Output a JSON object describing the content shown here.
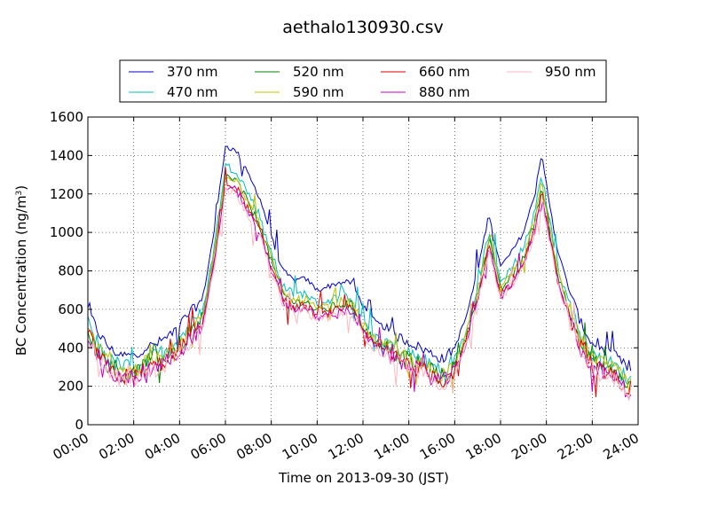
{
  "chart_data": {
    "type": "line",
    "title": "aethalo130930.csv",
    "xlabel": "Time on 2013-09-30 (JST)",
    "ylabel": "BC Concentration (ng/m",
    "ylabel_sup": "3",
    "ylabel_suffix": ")",
    "xlim": [
      "2013-09-30 00:00",
      "2013-10-01 00:00"
    ],
    "ylim": [
      0,
      1600
    ],
    "x_ticks": [
      "00:00",
      "02:00",
      "04:00",
      "06:00",
      "08:00",
      "10:00",
      "12:00",
      "14:00",
      "16:00",
      "18:00",
      "20:00",
      "22:00",
      "24:00"
    ],
    "y_ticks": [
      "0",
      "200",
      "400",
      "600",
      "800",
      "1000",
      "1200",
      "1400",
      "1600"
    ],
    "grid": true,
    "legend_position": "top",
    "series": [
      {
        "name": "370 nm",
        "color": "#0000cc",
        "offset": 0,
        "scale": 1.0,
        "anchors": [
          [
            0,
            600
          ],
          [
            0.5,
            470
          ],
          [
            1,
            390
          ],
          [
            1.5,
            360
          ],
          [
            2,
            360
          ],
          [
            2.5,
            400
          ],
          [
            3,
            420
          ],
          [
            3.5,
            460
          ],
          [
            4,
            520
          ],
          [
            4.5,
            590
          ],
          [
            5,
            650
          ],
          [
            5.5,
            1000
          ],
          [
            6,
            1450
          ],
          [
            6.5,
            1420
          ],
          [
            7,
            1300
          ],
          [
            7.5,
            1180
          ],
          [
            8,
            980
          ],
          [
            8.5,
            800
          ],
          [
            9,
            750
          ],
          [
            9.5,
            760
          ],
          [
            10,
            700
          ],
          [
            10.5,
            720
          ],
          [
            11,
            740
          ],
          [
            11.5,
            740
          ],
          [
            12,
            620
          ],
          [
            12.5,
            540
          ],
          [
            13,
            500
          ],
          [
            13.5,
            460
          ],
          [
            14,
            430
          ],
          [
            14.5,
            400
          ],
          [
            15,
            370
          ],
          [
            15.5,
            340
          ],
          [
            16,
            400
          ],
          [
            16.5,
            560
          ],
          [
            17,
            800
          ],
          [
            17.5,
            1100
          ],
          [
            18,
            820
          ],
          [
            18.5,
            900
          ],
          [
            19,
            1000
          ],
          [
            19.5,
            1200
          ],
          [
            19.8,
            1400
          ],
          [
            20,
            1250
          ],
          [
            20.5,
            900
          ],
          [
            21,
            700
          ],
          [
            21.5,
            530
          ],
          [
            22,
            420
          ],
          [
            22.5,
            390
          ],
          [
            23,
            360
          ],
          [
            23.5,
            300
          ],
          [
            24,
            260
          ]
        ]
      },
      {
        "name": "470 nm",
        "color": "#00bfbf",
        "offset": -45,
        "scale": 0.96
      },
      {
        "name": "520 nm",
        "color": "#008000",
        "offset": -70,
        "scale": 0.94
      },
      {
        "name": "590 nm",
        "color": "#bfbf00",
        "offset": -60,
        "scale": 0.94
      },
      {
        "name": "660 nm",
        "color": "#dd0000",
        "offset": -80,
        "scale": 0.92
      },
      {
        "name": "880 nm",
        "color": "#bf00bf",
        "offset": -90,
        "scale": 0.92
      },
      {
        "name": "950 nm",
        "color": "#ffb6c1",
        "offset": -95,
        "scale": 0.91
      }
    ]
  }
}
